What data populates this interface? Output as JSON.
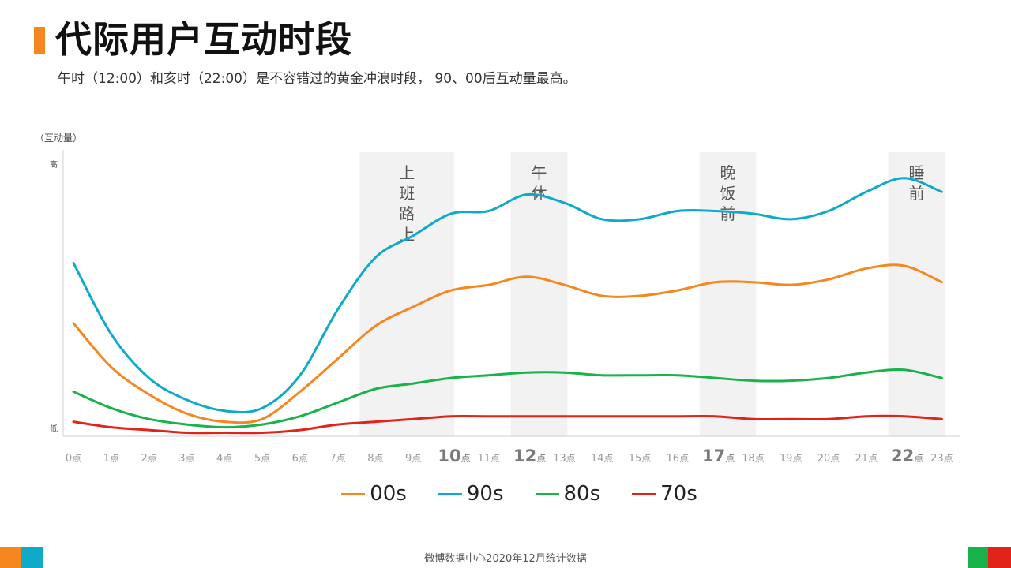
{
  "title": "代际用户互动时段",
  "subtitle": "午时（12:00）和亥时（22:00）是不容错过的黄金冲浪时段，  90、00后互动量最高。",
  "footer": "微博数据中心2020年12月统计数据",
  "colors": {
    "accent_orange": "#f6871f",
    "accent_blue": "#0eaac8",
    "accent_green": "#1ab24b",
    "accent_red": "#e2231a",
    "band": "#f2f2f2"
  },
  "chart_data": {
    "type": "line",
    "title": "",
    "ylabel": "（互动量）",
    "y_tick_high": "高",
    "y_tick_low": "低",
    "ylim": [
      0,
      100
    ],
    "x": [
      "0",
      "1",
      "2",
      "3",
      "4",
      "5",
      "6",
      "7",
      "8",
      "9",
      "10",
      "11",
      "12",
      "13",
      "14",
      "15",
      "16",
      "17",
      "18",
      "19",
      "20",
      "21",
      "22",
      "23"
    ],
    "x_unit": "点",
    "x_highlight": [
      "10",
      "12",
      "17",
      "22"
    ],
    "series": [
      {
        "name": "00s",
        "color": "#f6871f",
        "values": [
          41,
          25,
          15,
          8,
          5,
          6,
          16,
          28,
          40,
          47,
          53,
          55,
          58,
          55,
          51,
          51,
          53,
          56,
          56,
          55,
          57,
          61,
          62,
          56
        ]
      },
      {
        "name": "90s",
        "color": "#0eaac8",
        "values": [
          63,
          37,
          21,
          13,
          9,
          10,
          22,
          46,
          65,
          73,
          81,
          82,
          88,
          85,
          79,
          79,
          82,
          82,
          81,
          79,
          82,
          89,
          94,
          89
        ]
      },
      {
        "name": "80s",
        "color": "#1ab24b",
        "values": [
          16,
          10,
          6,
          4,
          3,
          4,
          7,
          12,
          17,
          19,
          21,
          22,
          23,
          23,
          22,
          22,
          22,
          21,
          20,
          20,
          21,
          23,
          24,
          21
        ]
      },
      {
        "name": "70s",
        "color": "#e2231a",
        "values": [
          5,
          3,
          2,
          1,
          1,
          1,
          2,
          4,
          5,
          6,
          7,
          7,
          7,
          7,
          7,
          7,
          7,
          7,
          6,
          6,
          6,
          7,
          7,
          6
        ]
      }
    ],
    "bands": [
      {
        "from": "8",
        "to": "10",
        "label": "上班路上"
      },
      {
        "from": "12",
        "to": "13",
        "label": "午休"
      },
      {
        "from": "17",
        "to": "18",
        "label": "晚饭前"
      },
      {
        "from": "22",
        "to": "23",
        "label": "睡前"
      }
    ],
    "legend_position": "bottom",
    "grid": false
  }
}
